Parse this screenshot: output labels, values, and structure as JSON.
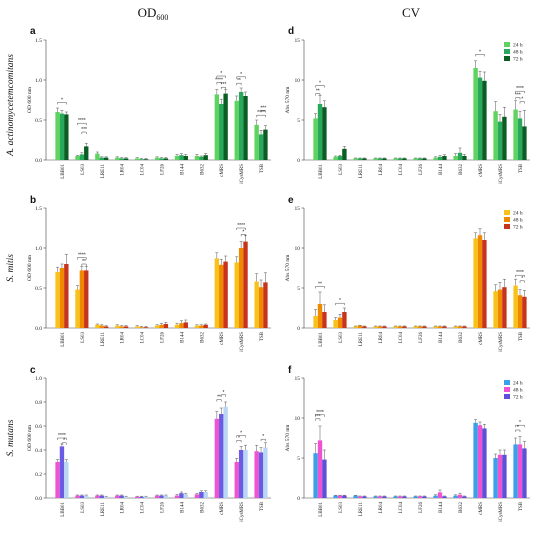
{
  "columns": {
    "left": {
      "main": "OD",
      "sub": "600"
    },
    "right": "CV"
  },
  "rows": [
    "A. actinomycetemcomitans",
    "S. mitis",
    "S. mutans"
  ],
  "legend_labels": [
    "24 h",
    "48 h",
    "72 h"
  ],
  "categories": [
    "LBB01",
    "LS03",
    "LRE11",
    "LR04",
    "LC04",
    "LF26",
    "B144",
    "B632",
    "cMRS",
    "iCysMRS",
    "TSB"
  ],
  "chart_data": [
    {
      "type": "bar",
      "letter": "a",
      "ylabel": "OD 600 nm",
      "ylim": [
        0,
        1.5
      ],
      "yticks": [
        0,
        0.5,
        1.0,
        1.5
      ],
      "tick_decimals": 1,
      "legend": false,
      "colors": [
        "#5fd35f",
        "#27a85b",
        "#0a5e23"
      ],
      "series": [
        {
          "name": "24 h",
          "values": [
            0.6,
            0.05,
            0.08,
            0.03,
            0.02,
            0.03,
            0.05,
            0.05,
            0.82,
            0.74,
            0.44
          ],
          "errors": [
            0.05,
            0.01,
            0.02,
            0.01,
            0.01,
            0.01,
            0.02,
            0.02,
            0.06,
            0.06,
            0.06
          ]
        },
        {
          "name": "48 h",
          "values": [
            0.58,
            0.07,
            0.03,
            0.02,
            0.01,
            0.02,
            0.06,
            0.04,
            0.7,
            0.85,
            0.32
          ],
          "errors": [
            0.04,
            0.02,
            0.01,
            0.01,
            0.01,
            0.01,
            0.02,
            0.01,
            0.06,
            0.05,
            0.05
          ]
        },
        {
          "name": "72 h",
          "values": [
            0.57,
            0.17,
            0.03,
            0.02,
            0.01,
            0.02,
            0.05,
            0.06,
            0.83,
            0.8,
            0.38
          ],
          "errors": [
            0.03,
            0.04,
            0.01,
            0.01,
            0.01,
            0.01,
            0.02,
            0.02,
            0.05,
            0.05,
            0.05
          ]
        }
      ],
      "annotations": [
        {
          "cat": 0,
          "from": 0,
          "to": 2,
          "text": "*",
          "y": 0.72
        },
        {
          "cat": 1,
          "from": 0,
          "to": 2,
          "text": "****",
          "y": 0.46
        },
        {
          "cat": 1,
          "from": 1,
          "to": 2,
          "text": "***",
          "y": 0.35
        },
        {
          "cat": 8,
          "from": 0,
          "to": 2,
          "text": "*",
          "y": 1.05
        },
        {
          "cat": 8,
          "from": 0,
          "to": 1,
          "text": "****",
          "y": 0.97
        },
        {
          "cat": 8,
          "from": 1,
          "to": 2,
          "text": "***",
          "y": 0.91
        },
        {
          "cat": 9,
          "from": 0,
          "to": 2,
          "text": "*",
          "y": 1.04
        },
        {
          "cat": 9,
          "from": 0,
          "to": 1,
          "text": "**",
          "y": 0.96
        },
        {
          "cat": 10,
          "from": 0,
          "to": 2,
          "text": "****",
          "y": 0.56
        },
        {
          "cat": 10,
          "from": 1,
          "to": 2,
          "text": "***",
          "y": 0.62
        }
      ]
    },
    {
      "type": "bar",
      "letter": "b",
      "ylabel": "OD 600 nm",
      "ylim": [
        0,
        1.5
      ],
      "yticks": [
        0,
        0.5,
        1.0,
        1.5
      ],
      "tick_decimals": 1,
      "legend": false,
      "colors": [
        "#f8c21a",
        "#ef8a00",
        "#c8341b"
      ],
      "series": [
        {
          "name": "24 h",
          "values": [
            0.7,
            0.48,
            0.04,
            0.03,
            0.02,
            0.03,
            0.04,
            0.03,
            0.87,
            0.82,
            0.58
          ],
          "errors": [
            0.06,
            0.05,
            0.01,
            0.01,
            0.01,
            0.01,
            0.02,
            0.01,
            0.07,
            0.07,
            0.1
          ]
        },
        {
          "name": "48 h",
          "values": [
            0.75,
            0.72,
            0.03,
            0.02,
            0.01,
            0.04,
            0.06,
            0.03,
            0.79,
            1.0,
            0.51
          ],
          "errors": [
            0.05,
            0.05,
            0.01,
            0.01,
            0.01,
            0.02,
            0.03,
            0.01,
            0.07,
            0.08,
            0.09
          ]
        },
        {
          "name": "72 h",
          "values": [
            0.8,
            0.72,
            0.02,
            0.02,
            0.01,
            0.05,
            0.07,
            0.04,
            0.83,
            1.08,
            0.57
          ],
          "errors": [
            0.12,
            0.05,
            0.01,
            0.01,
            0.01,
            0.02,
            0.03,
            0.01,
            0.07,
            0.08,
            0.12
          ]
        }
      ],
      "annotations": [
        {
          "cat": 1,
          "from": 0,
          "to": 2,
          "text": "****",
          "y": 0.88
        },
        {
          "cat": 1,
          "from": 1,
          "to": 2,
          "text": "**",
          "y": 0.8
        },
        {
          "cat": 9,
          "from": 0,
          "to": 2,
          "text": "****",
          "y": 1.25
        },
        {
          "cat": 9,
          "from": 1,
          "to": 2,
          "text": "*",
          "y": 1.17
        }
      ]
    },
    {
      "type": "bar",
      "letter": "c",
      "ylabel": "OD 600 nm",
      "ylim": [
        0,
        1.0
      ],
      "yticks": [
        0,
        0.2,
        0.4,
        0.6,
        0.8,
        1.0
      ],
      "tick_decimals": 1,
      "legend": false,
      "colors": [
        "#ee54d2",
        "#6a5be2",
        "#b9d6f6"
      ],
      "series": [
        {
          "name": "24 h",
          "values": [
            0.3,
            0.02,
            0.02,
            0.02,
            0.01,
            0.02,
            0.02,
            0.03,
            0.66,
            0.3,
            0.39
          ],
          "errors": [
            0.02,
            0.005,
            0.005,
            0.005,
            0.005,
            0.005,
            0.01,
            0.01,
            0.06,
            0.03,
            0.05
          ]
        },
        {
          "name": "48 h",
          "values": [
            0.43,
            0.02,
            0.02,
            0.02,
            0.01,
            0.02,
            0.04,
            0.05,
            0.7,
            0.4,
            0.38
          ],
          "errors": [
            0.02,
            0.005,
            0.005,
            0.005,
            0.005,
            0.005,
            0.01,
            0.01,
            0.05,
            0.03,
            0.04
          ]
        },
        {
          "name": "72 h",
          "values": [
            0.3,
            0.02,
            0.01,
            0.01,
            0.01,
            0.02,
            0.03,
            0.05,
            0.76,
            0.4,
            0.42
          ],
          "errors": [
            0.02,
            0.005,
            0.005,
            0.005,
            0.005,
            0.005,
            0.01,
            0.01,
            0.04,
            0.04,
            0.04
          ]
        }
      ],
      "annotations": [
        {
          "cat": 0,
          "from": 0,
          "to": 2,
          "text": "****",
          "y": 0.5
        },
        {
          "cat": 0,
          "from": 1,
          "to": 2,
          "text": "*",
          "y": 0.46
        },
        {
          "cat": 8,
          "from": 0,
          "to": 1,
          "text": "**",
          "y": 0.82
        },
        {
          "cat": 8,
          "from": 1,
          "to": 2,
          "text": "*",
          "y": 0.86
        },
        {
          "cat": 9,
          "from": 0,
          "to": 1,
          "text": "*",
          "y": 0.48
        },
        {
          "cat": 9,
          "from": 0,
          "to": 2,
          "text": "*",
          "y": 0.52
        },
        {
          "cat": 10,
          "from": 1,
          "to": 2,
          "text": "*",
          "y": 0.49
        }
      ]
    },
    {
      "type": "bar",
      "letter": "d",
      "ylabel": "Abs 570 nm",
      "ylim": [
        0,
        15
      ],
      "yticks": [
        0,
        5,
        10,
        15
      ],
      "tick_decimals": 0,
      "legend": true,
      "colors": [
        "#5fd35f",
        "#27a85b",
        "#0a5e23"
      ],
      "series": [
        {
          "name": "24 h",
          "values": [
            5.2,
            0.4,
            0.2,
            0.2,
            0.2,
            0.2,
            0.3,
            0.5,
            11.5,
            6.1,
            6.3
          ],
          "errors": [
            0.6,
            0.1,
            0.05,
            0.05,
            0.05,
            0.05,
            0.1,
            0.3,
            0.9,
            1.2,
            1.1
          ]
        },
        {
          "name": "48 h",
          "values": [
            7.0,
            0.5,
            0.2,
            0.2,
            0.2,
            0.2,
            0.4,
            0.9,
            10.3,
            4.8,
            5.2
          ],
          "errors": [
            1.1,
            0.1,
            0.05,
            0.05,
            0.05,
            0.05,
            0.15,
            0.6,
            0.8,
            0.9,
            0.9
          ]
        },
        {
          "name": "72 h",
          "values": [
            6.6,
            1.4,
            0.2,
            0.2,
            0.2,
            0.2,
            0.5,
            0.5,
            9.9,
            5.4,
            4.2
          ],
          "errors": [
            0.8,
            0.3,
            0.05,
            0.05,
            0.05,
            0.05,
            0.15,
            0.2,
            1.1,
            1.2,
            2.0
          ]
        }
      ],
      "annotations": [
        {
          "cat": 0,
          "from": 0,
          "to": 2,
          "text": "*",
          "y": 9.3
        },
        {
          "cat": 0,
          "from": 0,
          "to": 1,
          "text": "**",
          "y": 8.3
        },
        {
          "cat": 8,
          "from": 0,
          "to": 2,
          "text": "*",
          "y": 13.2
        },
        {
          "cat": 10,
          "from": 0,
          "to": 2,
          "text": "****",
          "y": 8.6
        },
        {
          "cat": 10,
          "from": 0,
          "to": 1,
          "text": "***",
          "y": 7.8
        },
        {
          "cat": 10,
          "from": 1,
          "to": 2,
          "text": "*",
          "y": 7.3
        }
      ]
    },
    {
      "type": "bar",
      "letter": "e",
      "ylabel": "Abs 570 nm",
      "ylim": [
        0,
        15
      ],
      "yticks": [
        0,
        5,
        10,
        15
      ],
      "tick_decimals": 0,
      "legend": true,
      "colors": [
        "#f8c21a",
        "#ef8a00",
        "#c8341b"
      ],
      "series": [
        {
          "name": "24 h",
          "values": [
            1.5,
            1.0,
            0.2,
            0.2,
            0.2,
            0.2,
            0.2,
            0.2,
            11.2,
            4.6,
            5.3
          ],
          "errors": [
            0.8,
            0.3,
            0.05,
            0.05,
            0.05,
            0.05,
            0.05,
            0.05,
            0.7,
            0.8,
            0.8
          ]
        },
        {
          "name": "48 h",
          "values": [
            3.0,
            1.3,
            0.3,
            0.2,
            0.2,
            0.2,
            0.2,
            0.2,
            11.6,
            4.8,
            4.1
          ],
          "errors": [
            1.5,
            0.4,
            0.05,
            0.05,
            0.05,
            0.05,
            0.05,
            0.05,
            0.8,
            0.9,
            0.7
          ]
        },
        {
          "name": "72 h",
          "values": [
            2.0,
            2.0,
            0.2,
            0.2,
            0.2,
            0.2,
            0.2,
            0.2,
            11.0,
            5.1,
            3.9
          ],
          "errors": [
            0.9,
            0.5,
            0.05,
            0.05,
            0.05,
            0.05,
            0.05,
            0.05,
            0.9,
            1.0,
            0.8
          ]
        }
      ],
      "annotations": [
        {
          "cat": 0,
          "from": 0,
          "to": 2,
          "text": "**",
          "y": 5.2
        },
        {
          "cat": 1,
          "from": 0,
          "to": 2,
          "text": "*",
          "y": 3.1
        },
        {
          "cat": 10,
          "from": 0,
          "to": 2,
          "text": "****",
          "y": 6.6
        },
        {
          "cat": 10,
          "from": 1,
          "to": 2,
          "text": "*",
          "y": 5.9
        }
      ]
    },
    {
      "type": "bar",
      "letter": "f",
      "ylabel": "Abs 570 nm",
      "ylim": [
        0,
        15
      ],
      "yticks": [
        0,
        5,
        10,
        15
      ],
      "tick_decimals": 0,
      "legend": true,
      "colors": [
        "#3aa0ea",
        "#ee54d2",
        "#5e50d8"
      ],
      "series": [
        {
          "name": "24 h",
          "values": [
            5.6,
            0.3,
            0.3,
            0.2,
            0.2,
            0.2,
            0.3,
            0.3,
            9.4,
            5.0,
            6.7
          ],
          "errors": [
            1.2,
            0.05,
            0.05,
            0.05,
            0.05,
            0.05,
            0.1,
            0.1,
            0.4,
            0.5,
            0.8
          ]
        },
        {
          "name": "48 h",
          "values": [
            7.2,
            0.3,
            0.2,
            0.2,
            0.2,
            0.2,
            0.7,
            0.4,
            9.1,
            5.4,
            6.7
          ],
          "errors": [
            1.8,
            0.05,
            0.05,
            0.05,
            0.05,
            0.05,
            0.3,
            0.2,
            0.4,
            0.6,
            1.0
          ]
        },
        {
          "name": "72 h",
          "values": [
            4.8,
            0.3,
            0.2,
            0.2,
            0.2,
            0.2,
            0.2,
            0.2,
            8.7,
            5.4,
            6.2
          ],
          "errors": [
            1.2,
            0.05,
            0.05,
            0.05,
            0.05,
            0.05,
            0.05,
            0.05,
            0.5,
            0.6,
            0.9
          ]
        }
      ],
      "annotations": [
        {
          "cat": 0,
          "from": 0,
          "to": 2,
          "text": "****",
          "y": 10.4
        },
        {
          "cat": 0,
          "from": 0,
          "to": 1,
          "text": "***",
          "y": 9.9
        },
        {
          "cat": 10,
          "from": 0,
          "to": 2,
          "text": "*",
          "y": 9.1
        },
        {
          "cat": 10,
          "from": 0,
          "to": 1,
          "text": "*",
          "y": 8.5
        }
      ]
    }
  ]
}
